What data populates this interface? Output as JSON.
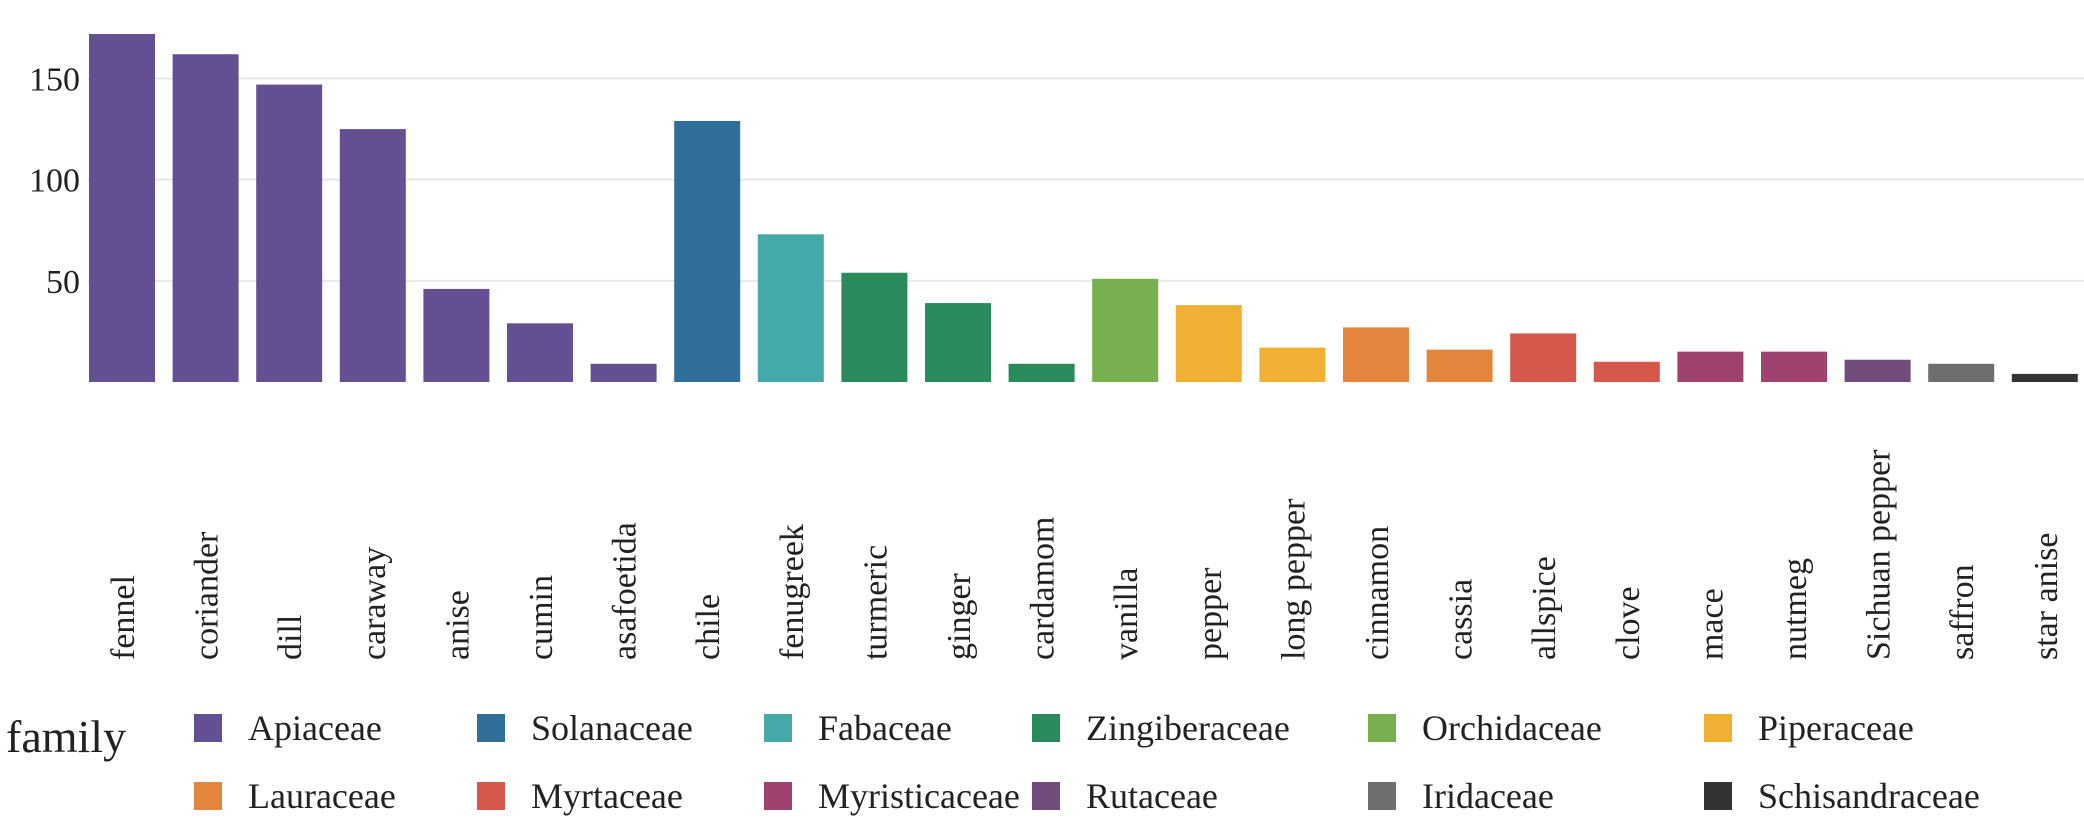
{
  "chart_data": {
    "type": "bar",
    "categories": [
      "fennel",
      "coriander",
      "dill",
      "caraway",
      "anise",
      "cumin",
      "asafoetida",
      "chile",
      "fenugreek",
      "turmeric",
      "ginger",
      "cardamom",
      "vanilla",
      "pepper",
      "long pepper",
      "cinnamon",
      "cassia",
      "allspice",
      "clove",
      "mace",
      "nutmeg",
      "Sichuan pepper",
      "saffron",
      "star anise"
    ],
    "values": [
      172,
      162,
      147,
      125,
      46,
      29,
      9,
      129,
      73,
      54,
      39,
      9,
      51,
      38,
      17,
      27,
      16,
      24,
      10,
      15,
      15,
      11,
      9,
      4
    ],
    "families": [
      "Apiaceae",
      "Apiaceae",
      "Apiaceae",
      "Apiaceae",
      "Apiaceae",
      "Apiaceae",
      "Apiaceae",
      "Solanaceae",
      "Fabaceae",
      "Zingiberaceae",
      "Zingiberaceae",
      "Zingiberaceae",
      "Orchidaceae",
      "Piperaceae",
      "Piperaceae",
      "Lauraceae",
      "Lauraceae",
      "Myrtaceae",
      "Myrtaceae",
      "Myristicaceae",
      "Myristicaceae",
      "Rutaceae",
      "Iridaceae",
      "Schisandraceae"
    ],
    "title": "",
    "xlabel": "",
    "ylabel": "",
    "ylim": [
      0,
      172
    ],
    "yticks": [
      50,
      100,
      150
    ],
    "grid": true,
    "legend": {
      "title": "family",
      "placement": "bottom",
      "entries": [
        {
          "name": "Apiaceae",
          "color": "#654f93"
        },
        {
          "name": "Solanaceae",
          "color": "#2f6f9a"
        },
        {
          "name": "Fabaceae",
          "color": "#45a9a9"
        },
        {
          "name": "Zingiberaceae",
          "color": "#2a8a5c"
        },
        {
          "name": "Orchidaceae",
          "color": "#79b04f"
        },
        {
          "name": "Piperaceae",
          "color": "#efb034"
        },
        {
          "name": "Lauraceae",
          "color": "#e5843c"
        },
        {
          "name": "Myrtaceae",
          "color": "#d6574b"
        },
        {
          "name": "Myristicaceae",
          "color": "#a0426f"
        },
        {
          "name": "Rutaceae",
          "color": "#6f4c7c"
        },
        {
          "name": "Iridaceae",
          "color": "#6e6e6e"
        },
        {
          "name": "Schisandraceae",
          "color": "#333333"
        }
      ]
    }
  }
}
